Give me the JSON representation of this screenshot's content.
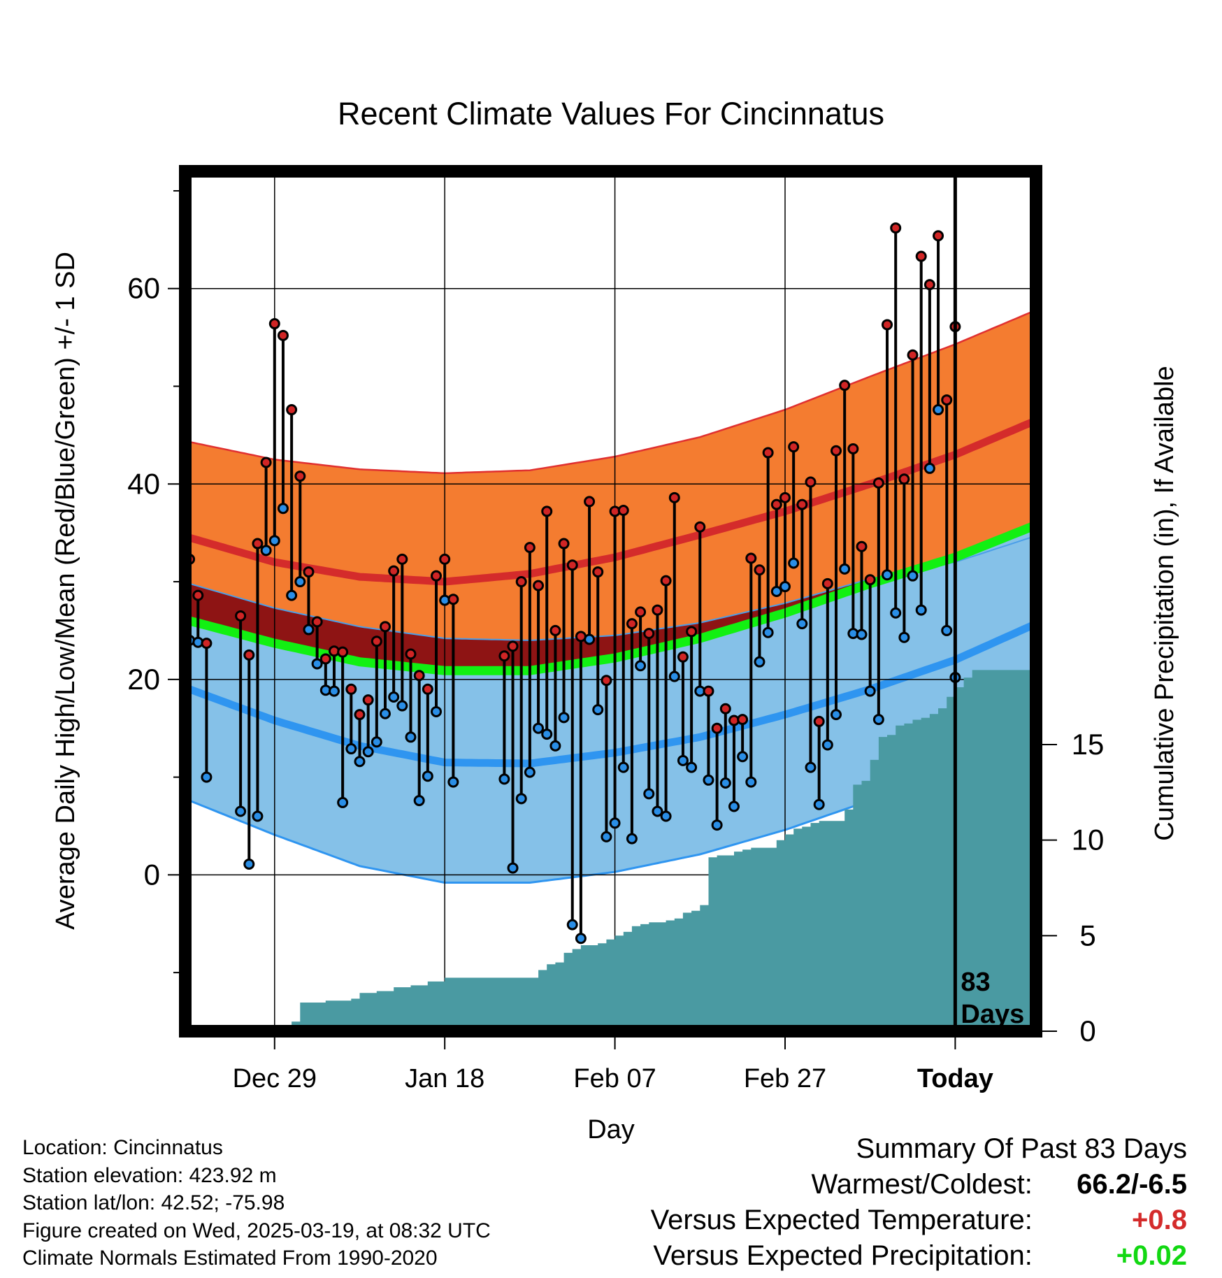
{
  "chart_data": {
    "type": "line",
    "title": "Recent Climate Values For Cincinnatus",
    "xlabel": "Day",
    "ylabel": "Average Daily High/Low/Mean (Red/Blue/Green) +/- 1 SD",
    "y2label": "Cumulative Precipitation (in), If Available",
    "x_ticks": [
      {
        "day": 10,
        "label": "Dec 29"
      },
      {
        "day": 30,
        "label": "Jan 18"
      },
      {
        "day": 50,
        "label": "Feb 07"
      },
      {
        "day": 70,
        "label": "Feb 27"
      },
      {
        "day": 90,
        "label": "Today"
      }
    ],
    "xlim": [
      -0.5,
      99.5
    ],
    "ylim": [
      -16,
      72
    ],
    "y_ticks": [
      0,
      20,
      40,
      60
    ],
    "y2lim": [
      0,
      45
    ],
    "y2_ticks": [
      0,
      5,
      10,
      15
    ],
    "grid": true,
    "marker_label": "83 Days",
    "normals": {
      "days": [
        0,
        10,
        20,
        30,
        40,
        50,
        60,
        70,
        80,
        90,
        99.5
      ],
      "high_mean": [
        34.5,
        32.0,
        30.5,
        30.0,
        30.8,
        32.5,
        34.8,
        37.2,
        40.0,
        43.0,
        46.5
      ],
      "high_upper": [
        44.3,
        42.5,
        41.5,
        41.1,
        41.4,
        42.8,
        44.8,
        47.6,
        51.0,
        54.3,
        57.8
      ],
      "low_mean": [
        19.0,
        15.8,
        13.2,
        11.5,
        11.4,
        12.5,
        14.1,
        16.4,
        19.0,
        22.0,
        25.7
      ],
      "low_upper": [
        29.8,
        27.3,
        25.4,
        24.2,
        24.0,
        24.5,
        25.8,
        27.8,
        30.3,
        32.0,
        34.7
      ],
      "low_lower": [
        7.6,
        4.1,
        0.9,
        -0.8,
        -0.8,
        0.3,
        2.1,
        4.6,
        7.6,
        11.1,
        16.0
      ],
      "mean_temp": [
        26.0,
        23.7,
        21.8,
        20.9,
        20.9,
        22.2,
        24.2,
        26.8,
        29.8,
        32.5,
        35.8
      ]
    },
    "series": [
      {
        "name": "High",
        "days": [
          0,
          1,
          2,
          6,
          7,
          8,
          9,
          10,
          11,
          12,
          13,
          14,
          15,
          16,
          17,
          18,
          19,
          20,
          21,
          22,
          23,
          24,
          25,
          26,
          27,
          28,
          29,
          30,
          31,
          37,
          38,
          39,
          40,
          41,
          42,
          43,
          44,
          45,
          46,
          47,
          48,
          49,
          50,
          51,
          52,
          53,
          54,
          55,
          56,
          57,
          58,
          59,
          60,
          61,
          62,
          63,
          64,
          65,
          66,
          67,
          68,
          69,
          70,
          71,
          72,
          73,
          74,
          75,
          76,
          77,
          78,
          79,
          80,
          81,
          82,
          83,
          84,
          85,
          86,
          87,
          88,
          89,
          90
        ],
        "values": [
          32.3,
          28.6,
          23.7,
          26.5,
          22.5,
          33.9,
          42.2,
          56.4,
          55.2,
          47.6,
          40.8,
          31.0,
          25.9,
          22.1,
          22.9,
          22.8,
          19.0,
          16.4,
          17.9,
          23.9,
          25.4,
          31.1,
          32.3,
          22.6,
          20.4,
          19.0,
          30.6,
          32.3,
          28.2,
          22.4,
          23.4,
          30.0,
          33.5,
          29.6,
          37.2,
          25.0,
          33.9,
          31.7,
          24.4,
          38.2,
          31.0,
          19.9,
          37.2,
          37.3,
          25.7,
          26.9,
          24.7,
          27.1,
          30.1,
          38.6,
          22.3,
          24.9,
          35.6,
          18.8,
          15.0,
          17.0,
          15.8,
          15.9,
          32.4,
          31.2,
          43.2,
          37.9,
          38.6,
          43.8,
          37.9,
          40.2,
          15.7,
          29.8,
          43.4,
          50.1,
          43.6,
          33.6,
          30.2,
          40.1,
          56.3,
          66.2,
          40.5,
          53.2,
          63.3,
          60.4,
          65.4,
          48.6,
          56.1
        ]
      },
      {
        "name": "Low",
        "days": [
          0,
          1,
          2,
          6,
          7,
          8,
          9,
          10,
          11,
          12,
          13,
          14,
          15,
          16,
          17,
          18,
          19,
          20,
          21,
          22,
          23,
          24,
          25,
          26,
          27,
          28,
          29,
          30,
          31,
          37,
          38,
          39,
          40,
          41,
          42,
          43,
          44,
          45,
          46,
          47,
          48,
          49,
          50,
          51,
          52,
          53,
          54,
          55,
          56,
          57,
          58,
          59,
          60,
          61,
          62,
          63,
          64,
          65,
          66,
          67,
          68,
          69,
          70,
          71,
          72,
          73,
          74,
          75,
          76,
          77,
          78,
          79,
          80,
          81,
          82,
          83,
          84,
          85,
          86,
          87,
          88,
          89,
          90
        ],
        "values": [
          24.0,
          23.8,
          10.0,
          6.5,
          1.1,
          6.0,
          33.2,
          34.2,
          37.5,
          28.6,
          30.0,
          25.1,
          21.6,
          18.9,
          18.8,
          7.4,
          12.9,
          11.6,
          12.6,
          13.6,
          16.5,
          18.2,
          17.3,
          14.1,
          7.6,
          10.1,
          16.7,
          28.1,
          9.5,
          9.8,
          0.7,
          7.8,
          10.5,
          15.0,
          14.4,
          13.2,
          16.1,
          -5.1,
          -6.5,
          24.1,
          16.9,
          3.9,
          5.3,
          11.0,
          3.7,
          21.4,
          8.3,
          6.5,
          6.0,
          20.3,
          11.7,
          11.0,
          18.8,
          9.7,
          5.1,
          9.4,
          7.0,
          12.1,
          9.5,
          21.8,
          24.8,
          29.0,
          29.5,
          31.9,
          25.7,
          11.0,
          7.2,
          13.3,
          16.4,
          31.3,
          24.7,
          24.6,
          18.8,
          15.9,
          30.7,
          26.8,
          24.3,
          30.6,
          27.1,
          41.6,
          47.6,
          25.0,
          20.2
        ]
      }
    ],
    "precip_cumulative": {
      "days": [
        10,
        12,
        13,
        16,
        19,
        20,
        22,
        24,
        26,
        28,
        30,
        33,
        35,
        36,
        37,
        38,
        39,
        40,
        41,
        42,
        43,
        44,
        45,
        46,
        47,
        48,
        49,
        50,
        51,
        52,
        53,
        54,
        55,
        56,
        57,
        58,
        59,
        60,
        61,
        62,
        63,
        64,
        65,
        66,
        67,
        68,
        69,
        70,
        71,
        72,
        73,
        74,
        75,
        76,
        77,
        78,
        79,
        80,
        81,
        82,
        83,
        84,
        85,
        86,
        87,
        88,
        89,
        90,
        91,
        92,
        93,
        94,
        95,
        96,
        97,
        98,
        99.5
      ],
      "values": [
        0,
        0.5,
        1.5,
        1.6,
        1.7,
        2.0,
        2.1,
        2.3,
        2.4,
        2.6,
        2.8,
        2.8,
        2.8,
        2.8,
        2.8,
        2.8,
        2.8,
        2.8,
        3.2,
        3.5,
        3.6,
        4.1,
        4.3,
        4.5,
        4.5,
        4.6,
        4.8,
        5.0,
        5.2,
        5.5,
        5.6,
        5.7,
        5.7,
        5.8,
        5.9,
        6.2,
        6.3,
        6.6,
        9.1,
        9.2,
        9.2,
        9.4,
        9.5,
        9.6,
        9.6,
        9.6,
        10.0,
        10.3,
        10.6,
        10.7,
        10.9,
        11.0,
        11.0,
        11.0,
        11.6,
        12.9,
        13.1,
        14.2,
        15.4,
        15.5,
        16.0,
        16.1,
        16.3,
        16.4,
        16.6,
        16.9,
        17.5,
        18.0,
        18.5,
        18.9,
        18.9,
        18.9,
        18.9,
        18.9,
        18.9,
        18.9,
        18.9
      ]
    },
    "colors": {
      "high_band": "#f47c30",
      "high_mean": "#d42b2b",
      "overlap_band": "#8e1414",
      "low_band": "#85c1e8",
      "low_line": "#2f95f0",
      "mean_line": "#12f012",
      "precip_fill": "#4a9aa2",
      "high_dot": "#d02525",
      "low_dot": "#2a8ee6"
    }
  },
  "footer": {
    "location": "Location: Cincinnatus",
    "elevation": "Station elevation: 423.92 m",
    "latlon": "Station lat/lon: 42.52; -75.98",
    "created": "Figure created on Wed, 2025-03-19, at 08:32 UTC",
    "normals": "Climate Normals Estimated From 1990-2020"
  },
  "summary": {
    "heading": "Summary Of Past 83 Days",
    "warm_label": "Warmest/Coldest:",
    "warm_value": "66.2/-6.5",
    "temp_label": "Versus Expected Temperature:",
    "temp_value": "+0.8",
    "temp_color": "#d42b2b",
    "precip_label": "Versus Expected Precipitation:",
    "precip_value": "+0.02",
    "precip_color": "#12d812"
  }
}
